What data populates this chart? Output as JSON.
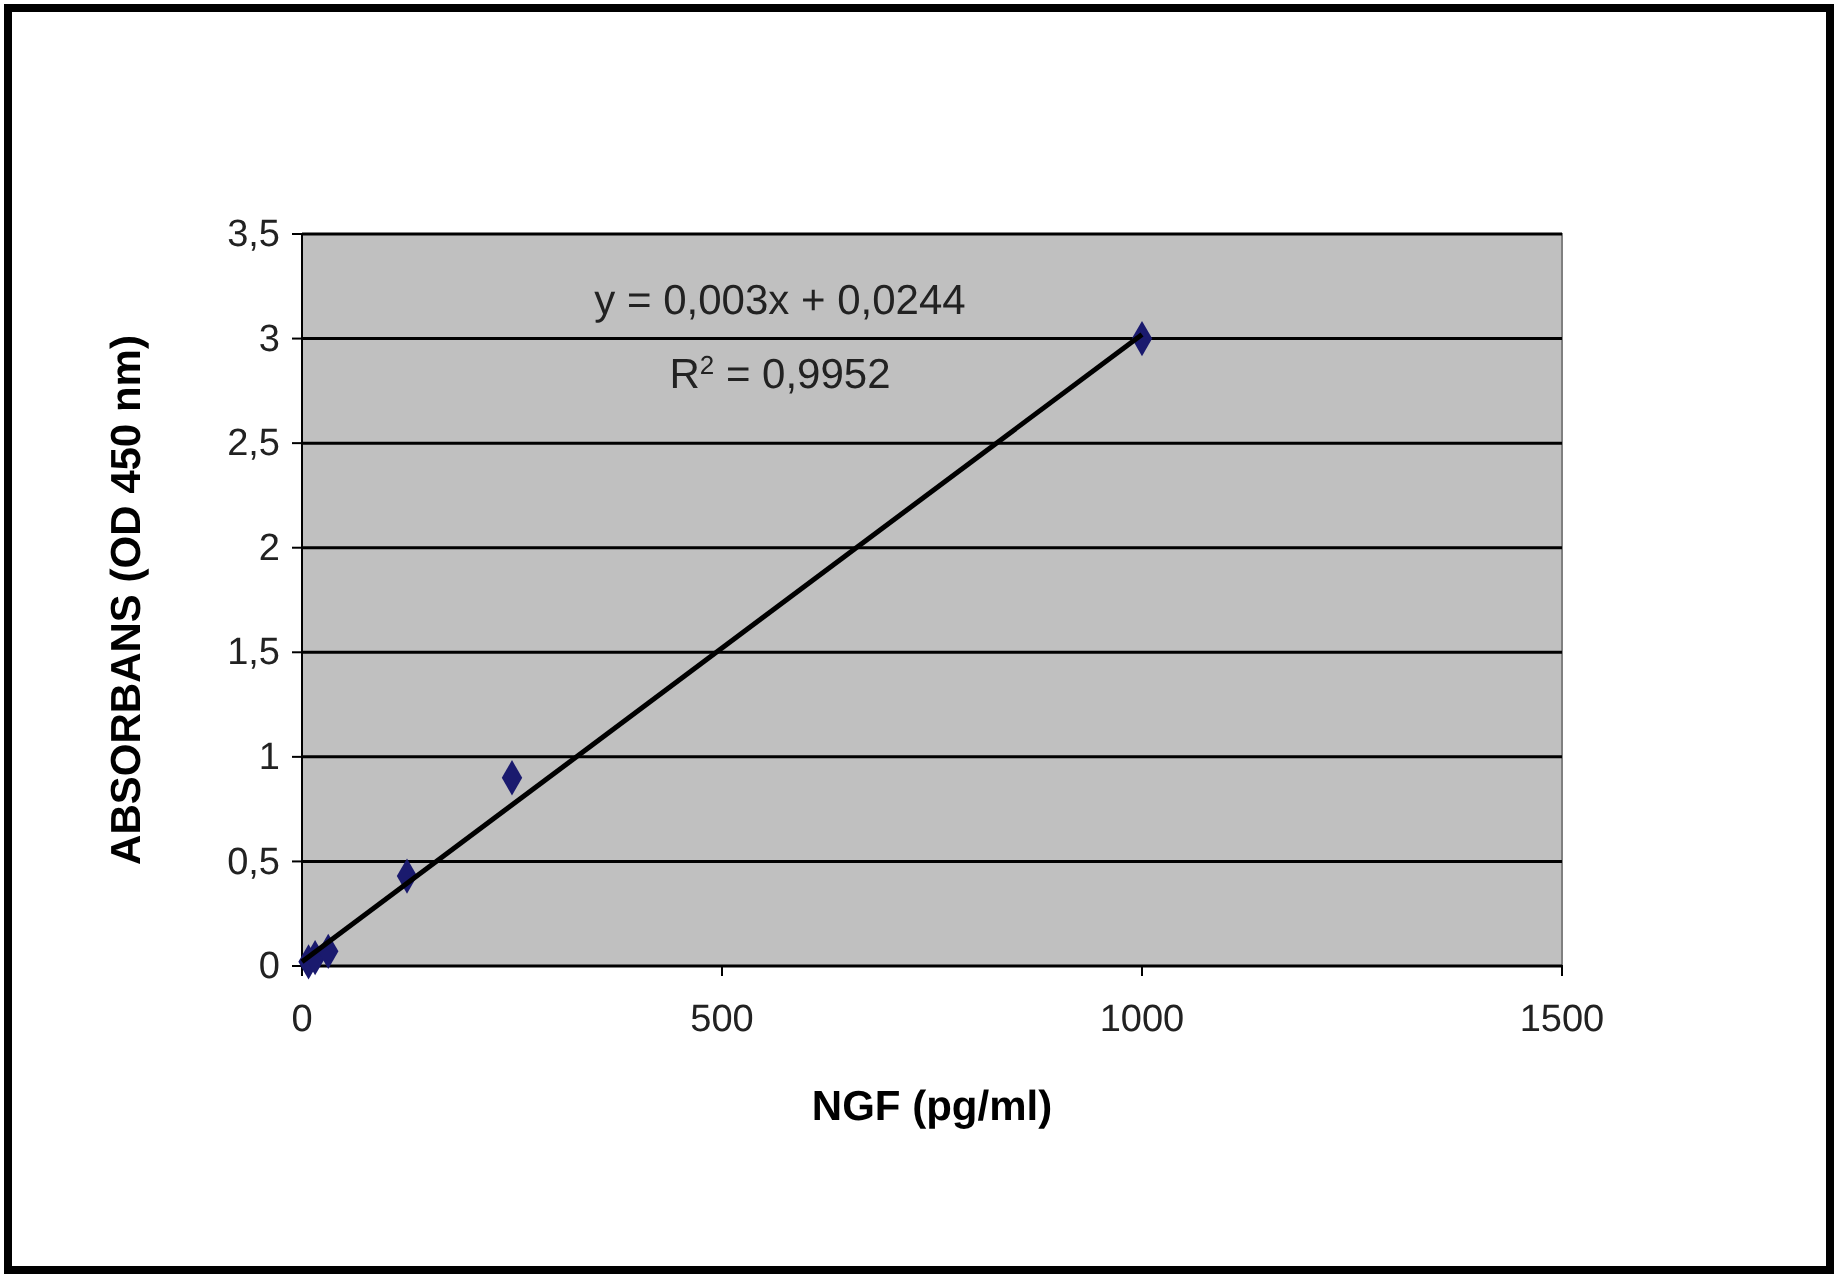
{
  "chart_data": {
    "type": "scatter",
    "xlabel": "NGF (pg/ml)",
    "ylabel": "ABSORBANS (OD 450 nm)",
    "xlim": [
      0,
      1500
    ],
    "xticks": [
      0,
      500,
      1000,
      1500
    ],
    "ylim": [
      0,
      3.5
    ],
    "yticks": [
      0,
      {
        "value": 0.5,
        "label": "0,5"
      },
      1,
      {
        "value": 1.5,
        "label": "1,5"
      },
      2,
      {
        "value": 2.5,
        "label": "2,5"
      },
      3,
      {
        "value": 3.5,
        "label": "3,5"
      }
    ],
    "grid": "y",
    "series": [
      {
        "marker": "diamond",
        "color": "#1a1a6e",
        "x": [
          7.8,
          15.6,
          31.25,
          125,
          250,
          1000
        ],
        "values": [
          0.02,
          0.04,
          0.07,
          0.43,
          0.9,
          3.0
        ]
      },
      {
        "type": "line",
        "color": "#000000",
        "x": [
          0,
          1000
        ],
        "values": [
          0.02,
          3.02
        ]
      }
    ],
    "annotations": [
      "y = 0,003x + 0,0244",
      "R$^{2}$ = 0,9952"
    ]
  }
}
